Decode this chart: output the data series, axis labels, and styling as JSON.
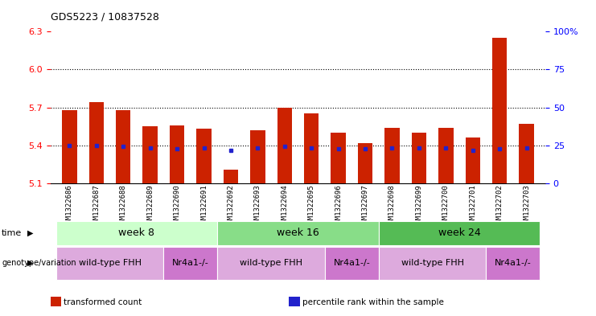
{
  "title": "GDS5223 / 10837528",
  "samples": [
    "GSM1322686",
    "GSM1322687",
    "GSM1322688",
    "GSM1322689",
    "GSM1322690",
    "GSM1322691",
    "GSM1322692",
    "GSM1322693",
    "GSM1322694",
    "GSM1322695",
    "GSM1322696",
    "GSM1322697",
    "GSM1322698",
    "GSM1322699",
    "GSM1322700",
    "GSM1322701",
    "GSM1322702",
    "GSM1322703"
  ],
  "bar_values": [
    5.68,
    5.74,
    5.68,
    5.55,
    5.56,
    5.53,
    5.21,
    5.52,
    5.7,
    5.65,
    5.5,
    5.42,
    5.54,
    5.5,
    5.54,
    5.46,
    6.25,
    5.57
  ],
  "percentile_values": [
    5.4,
    5.4,
    5.39,
    5.38,
    5.37,
    5.38,
    5.36,
    5.38,
    5.39,
    5.38,
    5.37,
    5.37,
    5.38,
    5.38,
    5.38,
    5.36,
    5.37,
    5.38
  ],
  "bar_bottom": 5.1,
  "ymin": 5.1,
  "ymax": 6.3,
  "yticks": [
    5.1,
    5.4,
    5.7,
    6.0,
    6.3
  ],
  "right_yticks": [
    0,
    25,
    50,
    75,
    100
  ],
  "bar_color": "#cc2200",
  "percentile_color": "#2222cc",
  "weeks": [
    {
      "label": "week 8",
      "start": 0,
      "end": 6,
      "color": "#ccffcc"
    },
    {
      "label": "week 16",
      "start": 6,
      "end": 12,
      "color": "#88dd88"
    },
    {
      "label": "week 24",
      "start": 12,
      "end": 18,
      "color": "#55bb55"
    }
  ],
  "genotypes": [
    {
      "label": "wild-type FHH",
      "start": 0,
      "end": 4,
      "color": "#ddaadd"
    },
    {
      "label": "Nr4a1-/-",
      "start": 4,
      "end": 6,
      "color": "#cc77cc"
    },
    {
      "label": "wild-type FHH",
      "start": 6,
      "end": 10,
      "color": "#ddaadd"
    },
    {
      "label": "Nr4a1-/-",
      "start": 10,
      "end": 12,
      "color": "#cc77cc"
    },
    {
      "label": "wild-type FHH",
      "start": 12,
      "end": 16,
      "color": "#ddaadd"
    },
    {
      "label": "Nr4a1-/-",
      "start": 16,
      "end": 18,
      "color": "#cc77cc"
    }
  ],
  "legend_items": [
    {
      "label": "transformed count",
      "color": "#cc2200"
    },
    {
      "label": "percentile rank within the sample",
      "color": "#2222cc"
    }
  ],
  "time_label": "time",
  "genotype_label": "genotype/variation",
  "background_color": "#ffffff",
  "bar_width": 0.55,
  "dotted_lines": [
    5.4,
    5.7,
    6.0
  ]
}
